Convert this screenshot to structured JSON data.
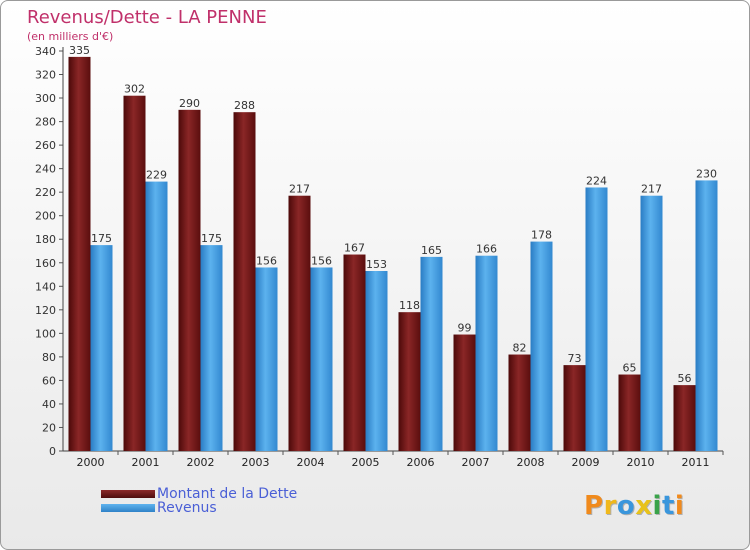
{
  "header": {
    "title": "Revenus/Dette - LA PENNE",
    "subtitle": "(en milliers d'€)"
  },
  "chart_data": {
    "type": "bar",
    "title": "Revenus/Dette - LA PENNE",
    "subtitle": "(en milliers d'€)",
    "categories": [
      "2000",
      "2001",
      "2002",
      "2003",
      "2004",
      "2005",
      "2006",
      "2007",
      "2008",
      "2009",
      "2010",
      "2011"
    ],
    "series": [
      {
        "name": "Montant de la Dette",
        "color": "#7a1a1a",
        "values": [
          335,
          302,
          290,
          288,
          217,
          167,
          118,
          99,
          82,
          73,
          65,
          56
        ]
      },
      {
        "name": "Revenus",
        "color": "#3a96dc",
        "values": [
          175,
          229,
          175,
          156,
          156,
          153,
          165,
          166,
          178,
          224,
          217,
          230
        ]
      }
    ],
    "ylim": [
      0,
      340
    ],
    "ytick_step": 20,
    "grid": false,
    "legend_position": "bottom-left"
  },
  "logo": {
    "text": "Proxiti",
    "letters": [
      {
        "char": "P",
        "color": "#f08a1c"
      },
      {
        "char": "r",
        "color": "#f0b81c"
      },
      {
        "char": "o",
        "color": "#3a96dc"
      },
      {
        "char": "x",
        "color": "#e8c21a"
      },
      {
        "char": "i",
        "color": "#3aa34a"
      },
      {
        "char": "t",
        "color": "#3a96dc"
      },
      {
        "char": "i",
        "color": "#f08a1c"
      }
    ]
  }
}
